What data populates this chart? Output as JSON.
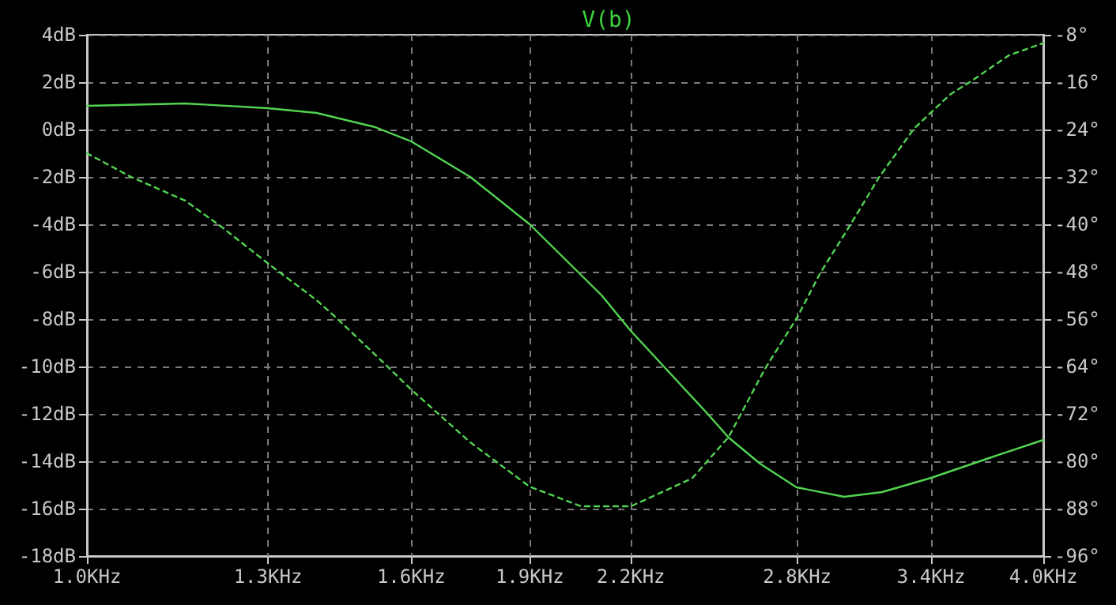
{
  "chart_data": {
    "type": "line",
    "title": "V(b)",
    "log": "x",
    "grid": true,
    "marker": "none",
    "xlim": [
      1,
      4
    ],
    "xticks": [
      {
        "value": 1.0,
        "label": "1.0KHz"
      },
      {
        "value": 1.3,
        "label": "1.3KHz"
      },
      {
        "value": 1.6,
        "label": "1.6KHz"
      },
      {
        "value": 1.9,
        "label": "1.9KHz"
      },
      {
        "value": 2.2,
        "label": "2.2KHz"
      },
      {
        "value": 2.8,
        "label": "2.8KHz"
      },
      {
        "value": 3.4,
        "label": "3.4KHz"
      },
      {
        "value": 4.0,
        "label": "4.0KHz"
      }
    ],
    "ylim": [
      -18,
      4
    ],
    "yticks": [
      {
        "value": 4,
        "label": "4dB"
      },
      {
        "value": 2,
        "label": "2dB"
      },
      {
        "value": 0,
        "label": "0dB"
      },
      {
        "value": -2,
        "label": "-2dB"
      },
      {
        "value": -4,
        "label": "-4dB"
      },
      {
        "value": -6,
        "label": "-6dB"
      },
      {
        "value": -8,
        "label": "-8dB"
      },
      {
        "value": -10,
        "label": "-10dB"
      },
      {
        "value": -12,
        "label": "-12dB"
      },
      {
        "value": -14,
        "label": "-14dB"
      },
      {
        "value": -16,
        "label": "-16dB"
      },
      {
        "value": -18,
        "label": "-18dB"
      }
    ],
    "y2lim": [
      -96,
      -8
    ],
    "y2ticks": [
      {
        "value": -8,
        "label": "-8°"
      },
      {
        "value": -16,
        "label": "-16°"
      },
      {
        "value": -24,
        "label": "-24°"
      },
      {
        "value": -32,
        "label": "-32°"
      },
      {
        "value": -40,
        "label": "-40°"
      },
      {
        "value": -48,
        "label": "-48°"
      },
      {
        "value": -56,
        "label": "-56°"
      },
      {
        "value": -64,
        "label": "-64°"
      },
      {
        "value": -72,
        "label": "-72°"
      },
      {
        "value": -80,
        "label": "-80°"
      },
      {
        "value": -88,
        "label": "-88°"
      },
      {
        "value": -96,
        "label": "-96°"
      }
    ],
    "series": [
      {
        "color": "#52d452",
        "line_style": "solid",
        "x": [
          1.0,
          1.153,
          1.3,
          1.395,
          1.519,
          1.6,
          1.743,
          1.9,
          2.109,
          2.2,
          2.459,
          2.535,
          2.653,
          2.797,
          2.997,
          3.167,
          3.4,
          3.685,
          4.0
        ],
        "values": [
          1.0,
          1.1,
          0.9,
          0.7,
          0.1,
          -0.5,
          -2.0,
          -4.0,
          -7.0,
          -8.5,
          -12.0,
          -13.0,
          -14.1,
          -15.1,
          -15.5,
          -15.3,
          -14.7,
          -13.9,
          -13.1
        ]
      },
      {
        "color": "#52d452",
        "line_style": "dashed",
        "axis": "y2",
        "x": [
          1.0,
          1.066,
          1.153,
          1.215,
          1.3,
          1.395,
          1.437,
          1.539,
          1.6,
          1.743,
          1.9,
          2.047,
          2.2,
          2.404,
          2.535,
          2.672,
          2.8,
          2.894,
          3.024,
          3.152,
          3.315,
          3.494,
          3.6,
          3.804,
          4.0
        ],
        "values": [
          -28,
          -32,
          -36,
          -40.4,
          -46.6,
          -52.8,
          -55.9,
          -63.5,
          -67.9,
          -76.8,
          -84.3,
          -87.6,
          -87.6,
          -82.9,
          -75.9,
          -64.4,
          -55.7,
          -48.3,
          -40.1,
          -32.1,
          -23.9,
          -18.1,
          -15.9,
          -11.5,
          -9.4
        ]
      }
    ]
  }
}
